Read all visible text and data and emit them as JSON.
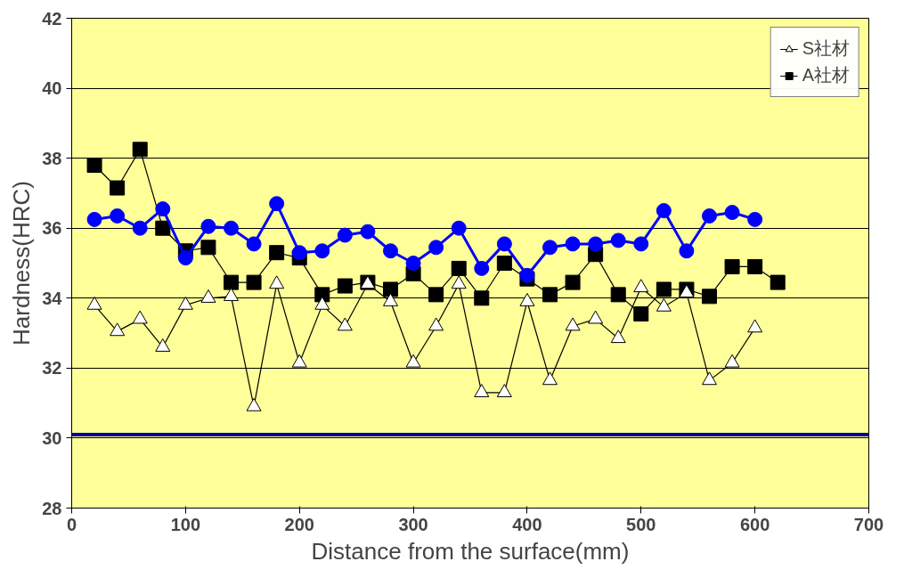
{
  "chart_data": {
    "type": "line",
    "xlabel": "Distance from the surface(mm)",
    "ylabel": "Hardness(HRC)",
    "xlim": [
      0,
      700
    ],
    "xticks": [
      0,
      100,
      200,
      300,
      400,
      500,
      600,
      700
    ],
    "ylim": [
      28,
      42
    ],
    "yticks": [
      28,
      30,
      32,
      34,
      36,
      38,
      40,
      42
    ],
    "grid": "y",
    "legend": "top right",
    "series": [
      {
        "color": "#0000ff",
        "marker": "circle",
        "x": [
          20,
          40,
          60,
          80,
          100,
          120,
          140,
          160,
          180,
          200,
          220,
          240,
          260,
          280,
          300,
          320,
          340,
          360,
          380,
          400,
          420,
          440,
          460,
          480,
          500,
          520,
          540,
          560,
          580,
          600
        ],
        "values": [
          36.25,
          36.35,
          36.0,
          36.55,
          35.15,
          36.05,
          36.0,
          35.55,
          36.7,
          35.3,
          35.35,
          35.8,
          35.9,
          35.35,
          35.0,
          35.45,
          36.0,
          34.85,
          35.55,
          34.65,
          35.45,
          35.55,
          35.55,
          35.65,
          35.55,
          36.5,
          35.35,
          36.35,
          36.45,
          36.25
        ]
      },
      {
        "name": "S社材",
        "color": "#000000",
        "marker": "triangle",
        "x": [
          20,
          40,
          60,
          80,
          100,
          120,
          140,
          160,
          180,
          200,
          220,
          240,
          260,
          280,
          300,
          320,
          340,
          360,
          380,
          400,
          420,
          440,
          460,
          480,
          500,
          520,
          540,
          560,
          580,
          600
        ],
        "values": [
          33.8,
          33.05,
          33.4,
          32.6,
          33.8,
          34.0,
          34.05,
          30.9,
          34.4,
          32.15,
          33.8,
          33.2,
          34.4,
          33.9,
          32.15,
          33.2,
          34.4,
          31.3,
          31.3,
          33.9,
          31.65,
          33.2,
          33.4,
          32.85,
          34.3,
          33.75,
          34.15,
          31.65,
          32.15,
          33.15
        ]
      },
      {
        "name": "A社材",
        "color": "#000000",
        "marker": "square",
        "x": [
          20,
          40,
          60,
          80,
          100,
          120,
          140,
          160,
          180,
          200,
          220,
          240,
          260,
          280,
          300,
          320,
          340,
          360,
          380,
          400,
          420,
          440,
          460,
          480,
          500,
          520,
          540,
          560,
          580,
          600,
          620
        ],
        "values": [
          37.8,
          37.15,
          38.25,
          36.0,
          35.35,
          35.45,
          34.45,
          34.45,
          35.3,
          35.15,
          34.1,
          34.35,
          34.45,
          34.25,
          34.7,
          34.1,
          34.85,
          34.0,
          35.0,
          34.55,
          34.1,
          34.45,
          35.25,
          34.1,
          33.55,
          34.25,
          34.25,
          34.05,
          34.9,
          34.9,
          34.45
        ]
      }
    ],
    "ref_lines": [
      {
        "axis": "y",
        "value": 30.1,
        "color": "#0000a0"
      }
    ]
  }
}
